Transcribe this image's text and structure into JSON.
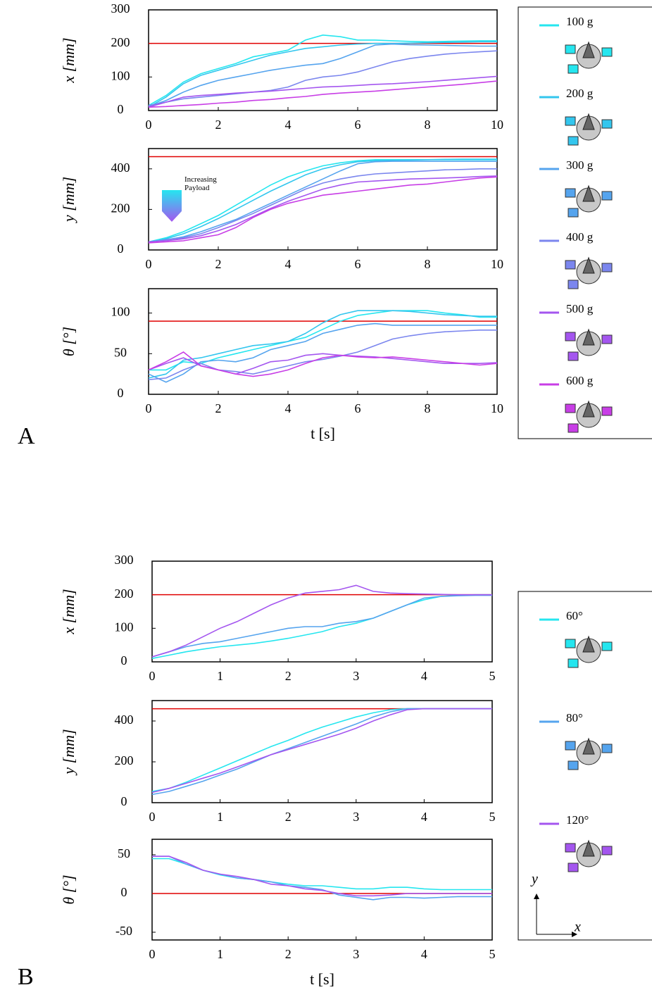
{
  "panel_labels": [
    "A",
    "B"
  ],
  "legend_axes": {
    "x": "x",
    "y": "y"
  },
  "chart_data": [
    {
      "type": "line",
      "ylabel": "x [mm]",
      "xlim": [
        0,
        10
      ],
      "ylim": [
        0,
        300
      ],
      "xticks": [
        0,
        2,
        4,
        6,
        8,
        10
      ],
      "yticks": [
        0,
        100,
        200,
        300
      ],
      "legend": "right",
      "reference": {
        "value": 200,
        "color": "#e00000"
      },
      "x": [
        0,
        0.5,
        1,
        1.5,
        2,
        2.5,
        3,
        3.5,
        4,
        4.5,
        5,
        5.5,
        6,
        6.5,
        7,
        7.5,
        8,
        8.5,
        9,
        9.5,
        10
      ],
      "series": [
        {
          "name": "100 g",
          "color": "#25e6ef",
          "values": [
            15,
            45,
            85,
            110,
            125,
            140,
            160,
            170,
            180,
            210,
            225,
            220,
            210,
            210,
            208,
            206,
            205,
            206,
            207,
            208,
            208
          ]
        },
        {
          "name": "200 g",
          "color": "#33c6ee",
          "values": [
            10,
            40,
            80,
            105,
            120,
            135,
            150,
            165,
            175,
            185,
            190,
            195,
            198,
            200,
            200,
            201,
            202,
            203,
            204,
            205,
            205
          ]
        },
        {
          "name": "300 g",
          "color": "#55a4ee",
          "values": [
            12,
            30,
            55,
            75,
            90,
            100,
            110,
            120,
            128,
            135,
            140,
            155,
            175,
            195,
            198,
            196,
            195,
            194,
            193,
            192,
            192
          ]
        },
        {
          "name": "400 g",
          "color": "#7b86ee",
          "values": [
            15,
            25,
            35,
            40,
            45,
            50,
            55,
            60,
            70,
            90,
            100,
            105,
            115,
            130,
            145,
            155,
            162,
            168,
            172,
            175,
            178
          ]
        },
        {
          "name": "500 g",
          "color": "#a456ef",
          "values": [
            10,
            25,
            40,
            45,
            48,
            52,
            55,
            58,
            62,
            66,
            70,
            72,
            75,
            78,
            80,
            83,
            86,
            90,
            94,
            98,
            102
          ]
        },
        {
          "name": "600 g",
          "color": "#c83ee6",
          "values": [
            10,
            12,
            15,
            18,
            22,
            25,
            30,
            33,
            38,
            42,
            48,
            52,
            55,
            58,
            62,
            66,
            70,
            74,
            78,
            83,
            88
          ]
        }
      ]
    },
    {
      "type": "line",
      "ylabel": "y [mm]",
      "xlim": [
        0,
        10
      ],
      "ylim": [
        0,
        500
      ],
      "xticks": [
        0,
        2,
        4,
        6,
        8,
        10
      ],
      "yticks": [
        0,
        200,
        400
      ],
      "annotation": "Increasing Payload",
      "reference": {
        "value": 460,
        "color": "#e00000"
      },
      "x": [
        0,
        0.5,
        1,
        1.5,
        2,
        2.5,
        3,
        3.5,
        4,
        4.5,
        5,
        5.5,
        6,
        6.5,
        7,
        7.5,
        8,
        8.5,
        9,
        9.5,
        10
      ],
      "series": [
        {
          "name": "100 g",
          "color": "#25e6ef",
          "values": [
            40,
            60,
            90,
            130,
            170,
            220,
            270,
            320,
            360,
            390,
            415,
            430,
            440,
            445,
            445,
            445,
            445,
            445,
            445,
            445,
            445
          ]
        },
        {
          "name": "200 g",
          "color": "#33c6ee",
          "values": [
            35,
            55,
            80,
            115,
            155,
            200,
            245,
            290,
            330,
            370,
            400,
            420,
            435,
            440,
            442,
            443,
            445,
            447,
            448,
            448,
            448
          ]
        },
        {
          "name": "300 g",
          "color": "#55a4ee",
          "values": [
            40,
            50,
            65,
            90,
            120,
            150,
            190,
            230,
            270,
            310,
            350,
            390,
            425,
            435,
            437,
            437,
            437,
            437,
            437,
            437,
            437
          ]
        },
        {
          "name": "400 g",
          "color": "#7b86ee",
          "values": [
            40,
            50,
            60,
            80,
            110,
            145,
            180,
            220,
            260,
            300,
            330,
            350,
            365,
            375,
            380,
            385,
            390,
            395,
            397,
            400,
            400
          ]
        },
        {
          "name": "500 g",
          "color": "#a456ef",
          "values": [
            40,
            45,
            55,
            70,
            95,
            125,
            165,
            205,
            240,
            270,
            300,
            320,
            335,
            340,
            345,
            350,
            352,
            355,
            358,
            362,
            365
          ]
        },
        {
          "name": "600 g",
          "color": "#c83ee6",
          "values": [
            35,
            40,
            45,
            60,
            75,
            110,
            160,
            200,
            230,
            250,
            270,
            280,
            290,
            300,
            310,
            320,
            325,
            335,
            345,
            355,
            360
          ]
        }
      ]
    },
    {
      "type": "line",
      "ylabel": "θ [°]",
      "xlabel": "t [s]",
      "xlim": [
        0,
        10
      ],
      "ylim": [
        0,
        130
      ],
      "xticks": [
        0,
        2,
        4,
        6,
        8,
        10
      ],
      "yticks": [
        0,
        50,
        100
      ],
      "reference": {
        "value": 90,
        "color": "#e00000"
      },
      "x": [
        0,
        0.5,
        1,
        1.5,
        2,
        2.5,
        3,
        3.5,
        4,
        4.5,
        5,
        5.5,
        6,
        6.5,
        7,
        7.5,
        8,
        8.5,
        9,
        9.5,
        10
      ],
      "series": [
        {
          "name": "100 g",
          "color": "#25e6ef",
          "values": [
            30,
            30,
            40,
            38,
            45,
            50,
            55,
            60,
            65,
            70,
            80,
            90,
            97,
            100,
            103,
            103,
            103,
            100,
            98,
            95,
            95
          ]
        },
        {
          "name": "200 g",
          "color": "#33c6ee",
          "values": [
            20,
            25,
            42,
            45,
            50,
            55,
            60,
            62,
            65,
            75,
            88,
            98,
            103,
            103,
            103,
            102,
            100,
            98,
            97,
            96,
            96
          ]
        },
        {
          "name": "300 g",
          "color": "#55a4ee",
          "values": [
            25,
            15,
            25,
            40,
            42,
            40,
            45,
            55,
            60,
            65,
            75,
            80,
            85,
            87,
            85,
            85,
            85,
            85,
            85,
            85,
            85
          ]
        },
        {
          "name": "400 g",
          "color": "#7b86ee",
          "values": [
            18,
            20,
            30,
            38,
            30,
            28,
            25,
            30,
            35,
            40,
            43,
            47,
            52,
            60,
            68,
            72,
            75,
            77,
            78,
            79,
            79
          ]
        },
        {
          "name": "500 g",
          "color": "#a456ef",
          "values": [
            30,
            38,
            45,
            35,
            30,
            25,
            32,
            40,
            42,
            48,
            50,
            48,
            47,
            46,
            44,
            42,
            40,
            38,
            38,
            38,
            39
          ]
        },
        {
          "name": "600 g",
          "color": "#c83ee6",
          "values": [
            30,
            40,
            52,
            35,
            30,
            25,
            22,
            25,
            30,
            38,
            45,
            48,
            46,
            45,
            46,
            44,
            42,
            40,
            38,
            36,
            38
          ]
        }
      ]
    },
    {
      "type": "line",
      "ylabel": "x [mm]",
      "xlim": [
        0,
        5
      ],
      "ylim": [
        0,
        300
      ],
      "xticks": [
        0,
        1,
        2,
        3,
        4,
        5
      ],
      "yticks": [
        0,
        100,
        200,
        300
      ],
      "legend": "right",
      "reference": {
        "value": 200,
        "color": "#e00000"
      },
      "x": [
        0,
        0.25,
        0.5,
        0.75,
        1,
        1.25,
        1.5,
        1.75,
        2,
        2.25,
        2.5,
        2.75,
        3,
        3.25,
        3.5,
        3.75,
        4,
        4.25,
        4.5,
        4.75,
        5
      ],
      "series": [
        {
          "name": "60°",
          "color": "#25e6ef",
          "values": [
            10,
            20,
            30,
            38,
            45,
            50,
            55,
            62,
            70,
            80,
            90,
            105,
            115,
            130,
            150,
            170,
            185,
            195,
            198,
            200,
            200
          ]
        },
        {
          "name": "80°",
          "color": "#55a4ee",
          "values": [
            15,
            30,
            45,
            55,
            60,
            70,
            80,
            90,
            100,
            105,
            105,
            115,
            120,
            130,
            150,
            170,
            190,
            195,
            197,
            198,
            198
          ]
        },
        {
          "name": "120°",
          "color": "#a456ef",
          "values": [
            15,
            30,
            50,
            75,
            100,
            120,
            145,
            170,
            190,
            205,
            210,
            215,
            228,
            210,
            205,
            203,
            202,
            201,
            200,
            200,
            200
          ]
        }
      ]
    },
    {
      "type": "line",
      "ylabel": "y [mm]",
      "xlim": [
        0,
        5
      ],
      "ylim": [
        0,
        500
      ],
      "xticks": [
        0,
        1,
        2,
        3,
        4,
        5
      ],
      "yticks": [
        0,
        200,
        400
      ],
      "reference": {
        "value": 460,
        "color": "#e00000"
      },
      "x": [
        0,
        0.25,
        0.5,
        0.75,
        1,
        1.25,
        1.5,
        1.75,
        2,
        2.25,
        2.5,
        2.75,
        3,
        3.25,
        3.5,
        3.75,
        4,
        4.25,
        4.5,
        4.75,
        5
      ],
      "series": [
        {
          "name": "60°",
          "color": "#25e6ef",
          "values": [
            55,
            70,
            100,
            135,
            170,
            205,
            240,
            275,
            305,
            340,
            370,
            395,
            420,
            440,
            455,
            460,
            460,
            460,
            460,
            460,
            460
          ]
        },
        {
          "name": "80°",
          "color": "#55a4ee",
          "values": [
            40,
            55,
            80,
            105,
            135,
            165,
            200,
            235,
            265,
            295,
            325,
            355,
            385,
            420,
            445,
            460,
            460,
            460,
            460,
            460,
            460
          ]
        },
        {
          "name": "120°",
          "color": "#a456ef",
          "values": [
            50,
            70,
            95,
            120,
            145,
            175,
            205,
            235,
            260,
            285,
            310,
            335,
            365,
            400,
            430,
            455,
            460,
            460,
            460,
            460,
            460
          ]
        }
      ]
    },
    {
      "type": "line",
      "ylabel": "θ [°]",
      "xlabel": "t [s]",
      "xlim": [
        0,
        5
      ],
      "ylim": [
        -60,
        70
      ],
      "xticks": [
        0,
        1,
        2,
        3,
        4,
        5
      ],
      "yticks": [
        -50,
        0,
        50
      ],
      "reference": {
        "value": 0,
        "color": "#e00000"
      },
      "x": [
        0,
        0.25,
        0.5,
        0.75,
        1,
        1.25,
        1.5,
        1.75,
        2,
        2.25,
        2.5,
        2.75,
        3,
        3.25,
        3.5,
        3.75,
        4,
        4.25,
        4.5,
        4.75,
        5
      ],
      "series": [
        {
          "name": "60°",
          "color": "#25e6ef",
          "values": [
            45,
            45,
            38,
            30,
            24,
            20,
            18,
            15,
            12,
            10,
            10,
            8,
            6,
            6,
            8,
            8,
            6,
            5,
            5,
            5,
            5
          ]
        },
        {
          "name": "80°",
          "color": "#55a4ee",
          "values": [
            48,
            48,
            38,
            30,
            25,
            20,
            18,
            15,
            10,
            8,
            5,
            -2,
            -5,
            -8,
            -5,
            -5,
            -6,
            -5,
            -4,
            -4,
            -4
          ]
        },
        {
          "name": "120°",
          "color": "#a456ef",
          "values": [
            48,
            48,
            40,
            30,
            25,
            22,
            18,
            12,
            10,
            6,
            4,
            0,
            -3,
            -3,
            -2,
            0,
            0,
            0,
            0,
            0,
            0
          ]
        }
      ]
    }
  ]
}
